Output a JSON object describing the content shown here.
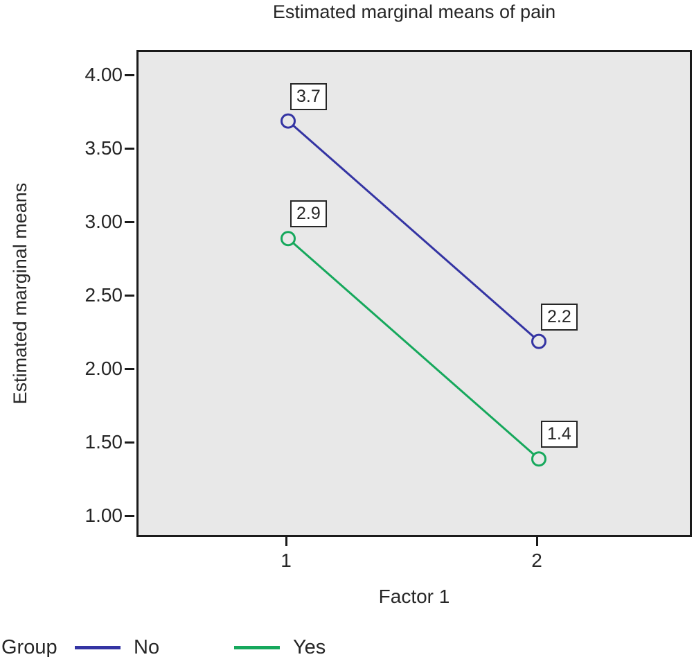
{
  "chart_data": {
    "type": "line",
    "title": "Estimated marginal means of pain",
    "xlabel": "Factor 1",
    "ylabel": "Estimated marginal means",
    "categories": [
      "1",
      "2"
    ],
    "series": [
      {
        "name": "No",
        "color": "#3434A3",
        "values": [
          3.7,
          2.2
        ],
        "point_labels": [
          "3.7",
          "2.2"
        ]
      },
      {
        "name": "Yes",
        "color": "#16A85C",
        "values": [
          2.9,
          1.4
        ],
        "point_labels": [
          "2.9",
          "1.4"
        ]
      }
    ],
    "ylim": [
      1.0,
      4.0
    ],
    "yticks": [
      "4.00",
      "3.50",
      "3.00",
      "2.50",
      "2.00",
      "1.50",
      "1.00"
    ],
    "ytick_values": [
      4.0,
      3.5,
      3.0,
      2.5,
      2.0,
      1.5,
      1.0
    ],
    "legend_title": "Group",
    "legend_position": "bottom-left",
    "grid": false,
    "marker": "open-circle",
    "plot_background": "#E8E8E8",
    "axis_color": "#1A1A1A",
    "text_color": "#262626"
  }
}
